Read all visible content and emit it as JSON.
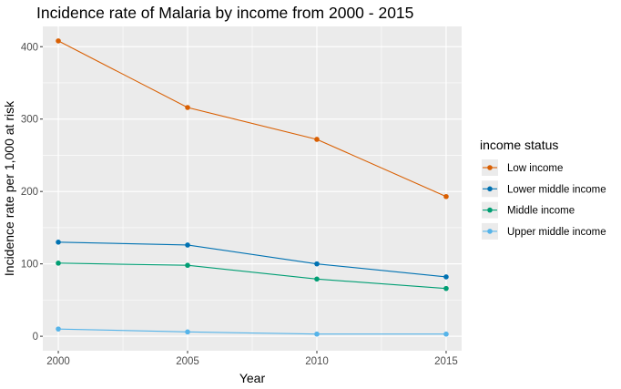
{
  "chart_data": {
    "type": "line",
    "title": "Incidence rate of Malaria by income from 2000 - 2015",
    "xlabel": "Year",
    "ylabel": "Incidence rate per 1,000 at risk",
    "x": [
      2000,
      2005,
      2010,
      2015
    ],
    "x_ticks": [
      "2000",
      "2005",
      "2010",
      "2015"
    ],
    "y_ticks": [
      "0",
      "100",
      "200",
      "300",
      "400"
    ],
    "xlim": [
      1999.4,
      2015.6
    ],
    "ylim": [
      -20,
      428
    ],
    "grid": true,
    "panel_background": "#ebebeb",
    "grid_color": "#ffffff",
    "legend_title": "income status",
    "legend_position": "right",
    "series": [
      {
        "name": "Low income",
        "color": "#d95f02",
        "values": [
          408,
          316,
          272,
          193
        ]
      },
      {
        "name": "Lower middle income",
        "color": "#0072b2",
        "values": [
          130,
          126,
          100,
          82
        ]
      },
      {
        "name": "Middle income",
        "color": "#009e73",
        "values": [
          101,
          98,
          79,
          66
        ]
      },
      {
        "name": "Upper middle income",
        "color": "#56b4e9",
        "values": [
          10,
          6,
          3,
          3
        ]
      }
    ]
  }
}
